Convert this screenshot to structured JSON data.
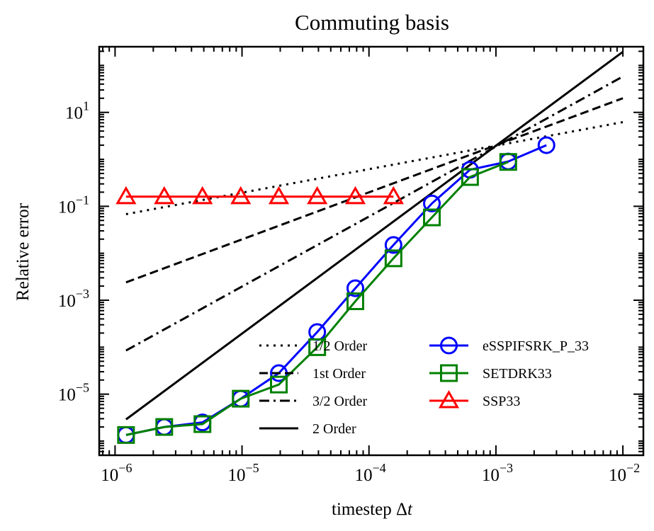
{
  "chart_data": {
    "type": "line",
    "title": "Commuting basis",
    "xlabel": "timestep Δt",
    "xlabel_parts": {
      "main": "timestep Δ",
      "italic": "t"
    },
    "ylabel": "Relative error",
    "x_scale": "log",
    "y_scale": "log",
    "xlim": [
      7.5e-07,
      0.0145
    ],
    "ylim": [
      5e-07,
      250
    ],
    "grid": false,
    "legend_position": "lower-right",
    "x_ticks": [
      {
        "value": 1e-06,
        "base": "10",
        "exp": "−6"
      },
      {
        "value": 1e-05,
        "base": "10",
        "exp": "−5"
      },
      {
        "value": 0.0001,
        "base": "10",
        "exp": "−4"
      },
      {
        "value": 0.001,
        "base": "10",
        "exp": "−3"
      },
      {
        "value": 0.01,
        "base": "10",
        "exp": "−2"
      }
    ],
    "y_ticks": [
      {
        "value": 1e-05,
        "base": "10",
        "exp": "−5"
      },
      {
        "value": 0.001,
        "base": "10",
        "exp": "−3"
      },
      {
        "value": 0.1,
        "base": "10",
        "exp": "−1"
      },
      {
        "value": 10,
        "base": "10",
        "exp": "1"
      }
    ],
    "reference_lines": [
      {
        "name": "1/2 Order",
        "style": "dotted",
        "color": "#000000",
        "x": [
          1.22e-06,
          0.01
        ],
        "y": [
          0.068,
          6.2
        ]
      },
      {
        "name": "1st Order",
        "style": "dashed",
        "color": "#000000",
        "x": [
          1.22e-06,
          0.01
        ],
        "y": [
          0.0024,
          20
        ]
      },
      {
        "name": "3/2 Order",
        "style": "dashdot",
        "color": "#000000",
        "x": [
          1.22e-06,
          0.01
        ],
        "y": [
          8.5e-05,
          58
        ]
      },
      {
        "name": "2 Order",
        "style": "solid",
        "color": "#000000",
        "x": [
          1.22e-06,
          0.01
        ],
        "y": [
          2.9e-06,
          195
        ]
      }
    ],
    "series": [
      {
        "name": "eSSPIFSRK_P_33",
        "color": "#0000ff",
        "marker": "circle",
        "x": [
          1.22e-06,
          2.44e-06,
          4.88e-06,
          9.77e-06,
          1.95e-05,
          3.91e-05,
          7.81e-05,
          0.000156,
          0.000313,
          0.000625,
          0.00125,
          0.0025
        ],
        "y": [
          1.35e-06,
          2e-06,
          2.5e-06,
          8e-06,
          2.8e-05,
          0.00021,
          0.0018,
          0.015,
          0.115,
          0.6,
          0.9,
          2.0
        ]
      },
      {
        "name": "SETDRK33",
        "color": "#008000",
        "marker": "square",
        "x": [
          1.22e-06,
          2.44e-06,
          4.88e-06,
          9.77e-06,
          1.95e-05,
          3.91e-05,
          7.81e-05,
          0.000156,
          0.000313,
          0.000625,
          0.00125
        ],
        "y": [
          1.35e-06,
          2e-06,
          2.3e-06,
          8e-06,
          1.6e-05,
          0.0001,
          0.00095,
          0.0078,
          0.058,
          0.42,
          0.88
        ]
      },
      {
        "name": "SSP33",
        "color": "#ff0000",
        "marker": "triangle",
        "x": [
          1.22e-06,
          2.44e-06,
          4.88e-06,
          9.77e-06,
          1.95e-05,
          3.91e-05,
          7.81e-05,
          0.000156
        ],
        "y": [
          0.16,
          0.16,
          0.16,
          0.16,
          0.16,
          0.16,
          0.16,
          0.16
        ]
      }
    ]
  }
}
